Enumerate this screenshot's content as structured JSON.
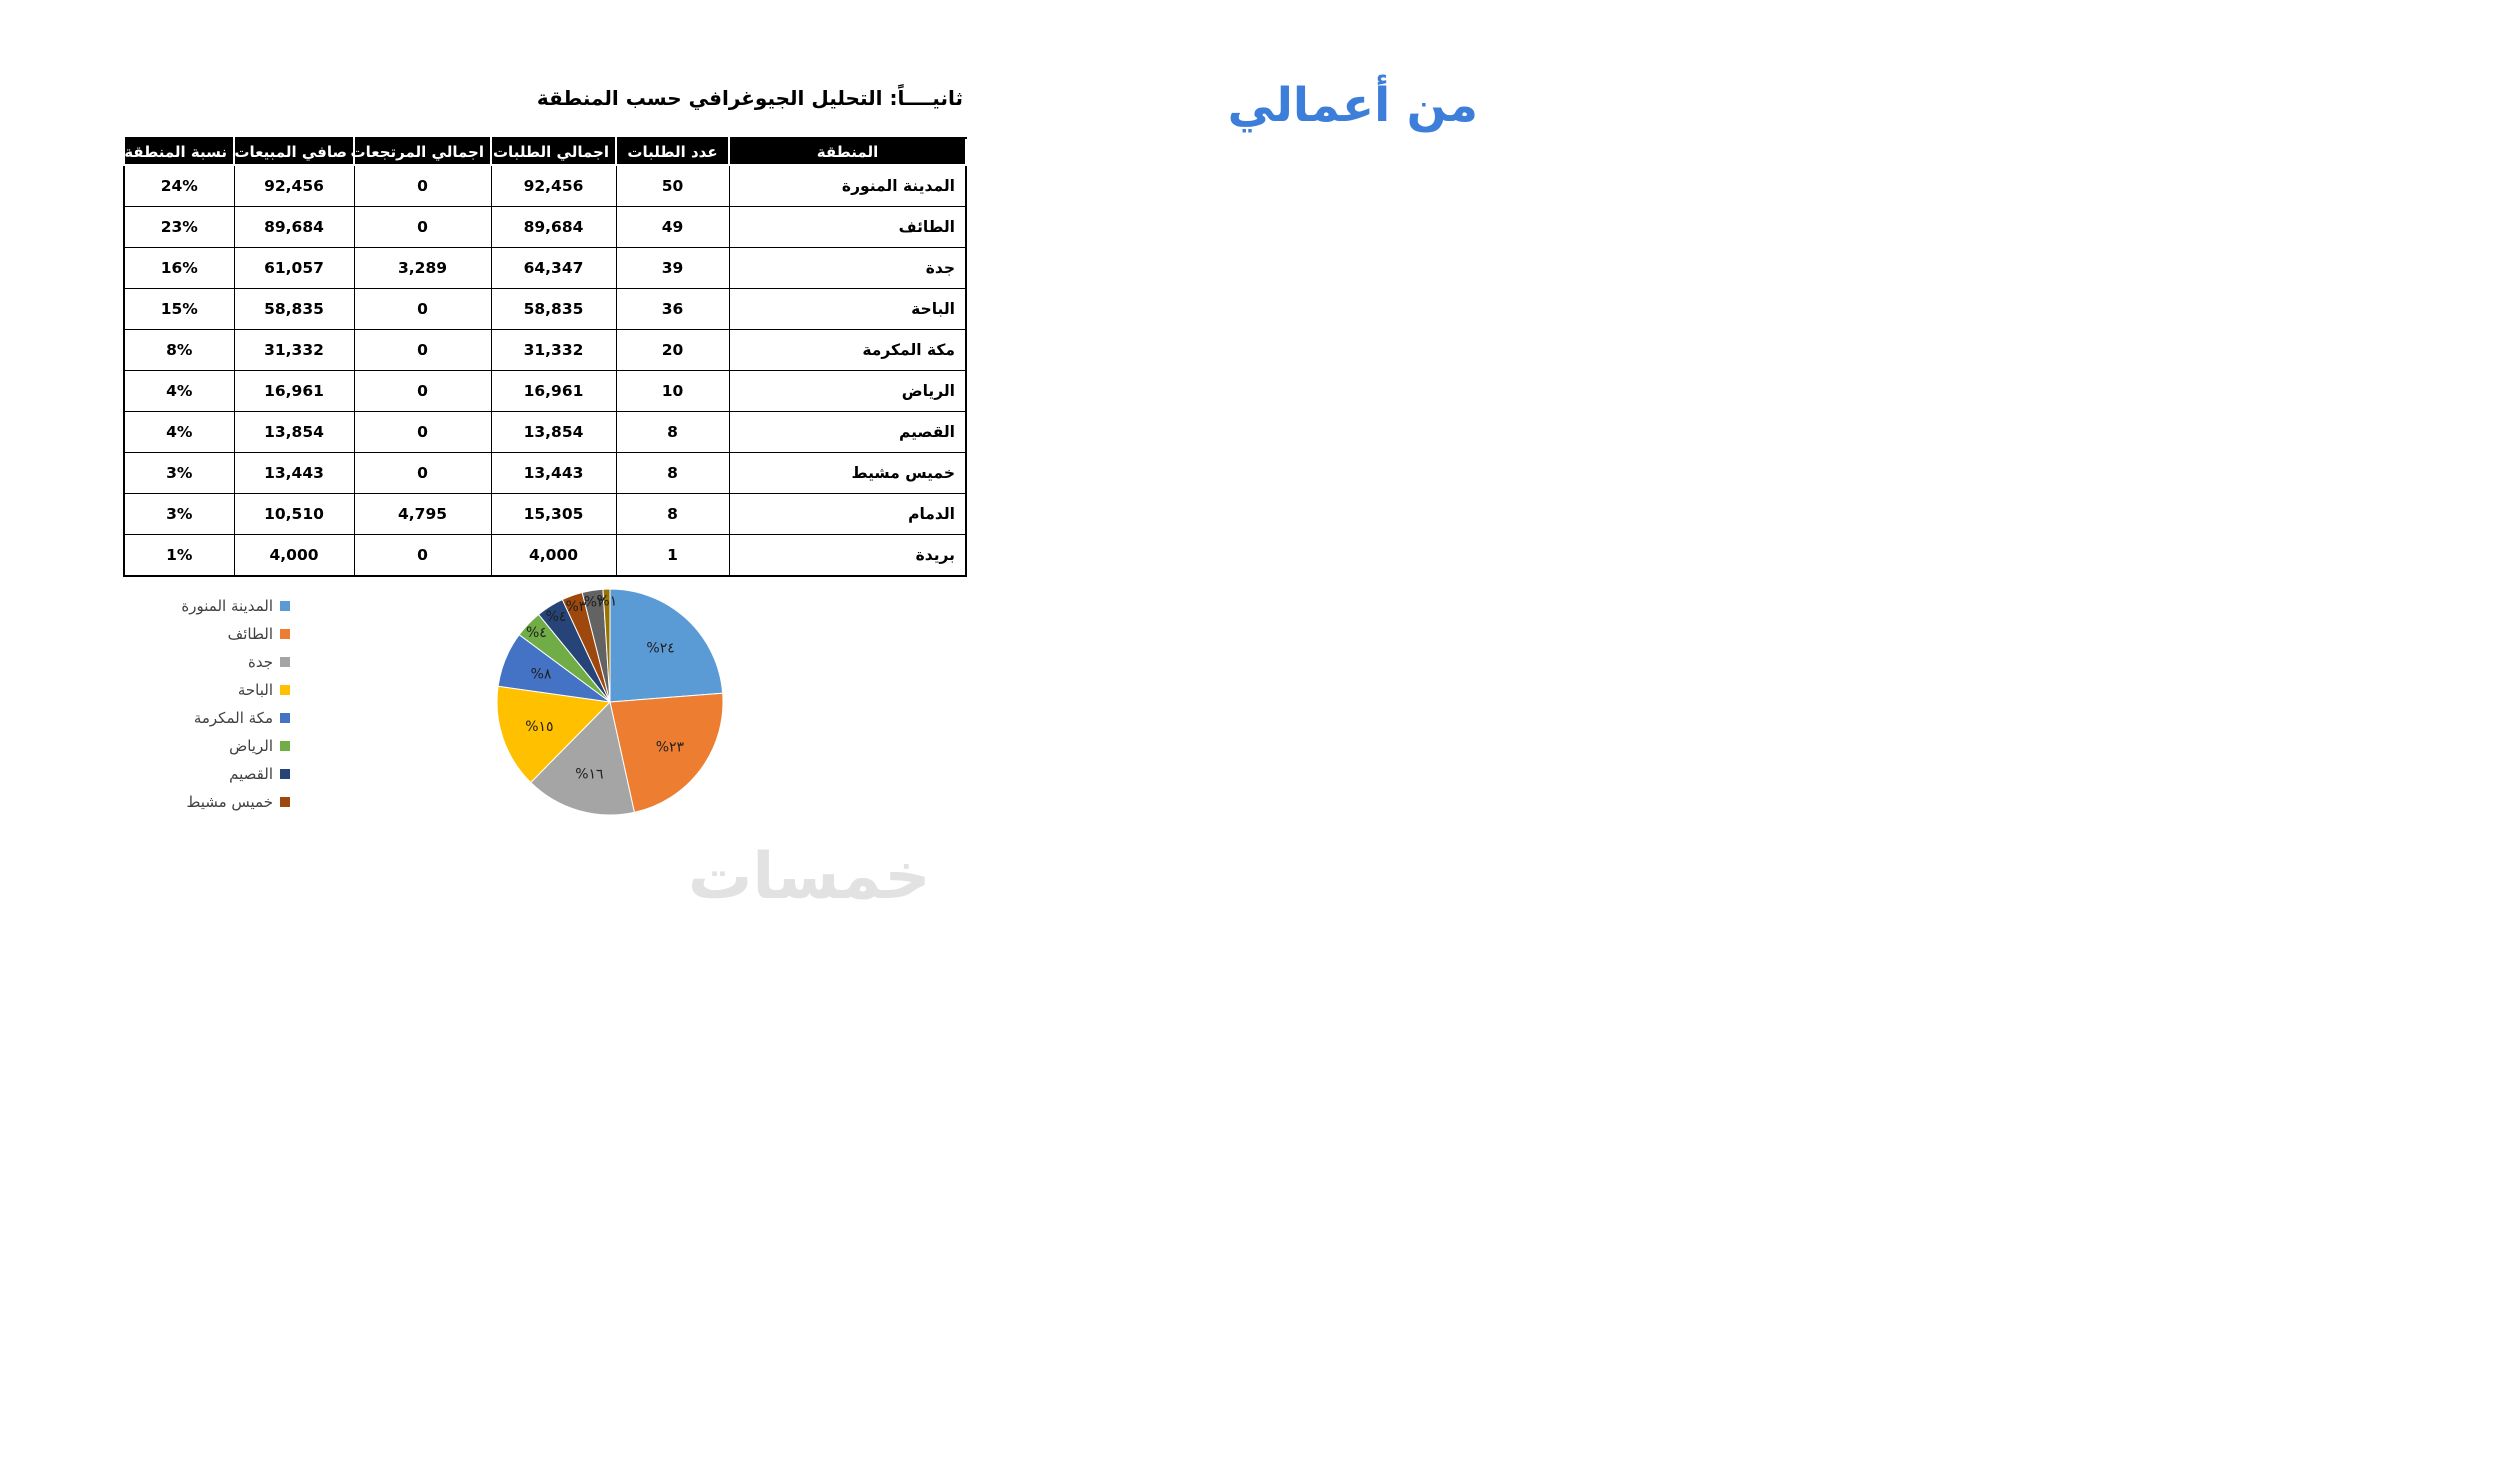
{
  "brand": {
    "label": "من أعمالي",
    "color": "#3d7edb"
  },
  "title": "ثانيــــاً: التحليل الجيوغرافي حسب المنطقة",
  "watermark": "خمسات",
  "table": {
    "headers": [
      "المنطقة",
      "عدد الطلبات",
      "اجمالي الطلبات",
      "اجمالي المرتجعات",
      "صافي المبيعات",
      "نسبة المنطقة"
    ],
    "rows": [
      [
        "المدينة المنورة",
        "50",
        "92,456",
        "0",
        "92,456",
        "24%"
      ],
      [
        "الطائف",
        "49",
        "89,684",
        "0",
        "89,684",
        "23%"
      ],
      [
        "جدة",
        "39",
        "64,347",
        "3,289",
        "61,057",
        "16%"
      ],
      [
        "الباحة",
        "36",
        "58,835",
        "0",
        "58,835",
        "15%"
      ],
      [
        "مكة المكرمة",
        "20",
        "31,332",
        "0",
        "31,332",
        "8%"
      ],
      [
        "الرياض",
        "10",
        "16,961",
        "0",
        "16,961",
        "4%"
      ],
      [
        "القصيم",
        "8",
        "13,854",
        "0",
        "13,854",
        "4%"
      ],
      [
        "خميس مشيط",
        "8",
        "13,443",
        "0",
        "13,443",
        "3%"
      ],
      [
        "الدمام",
        "8",
        "15,305",
        "4,795",
        "10,510",
        "3%"
      ],
      [
        "بريدة",
        "1",
        "4,000",
        "0",
        "4,000",
        "1%"
      ]
    ]
  },
  "chart_data": {
    "type": "pie",
    "title": "",
    "categories": [
      "المدينة المنورة",
      "الطائف",
      "جدة",
      "الباحة",
      "مكة المكرمة",
      "الرياض",
      "القصيم",
      "خميس مشيط",
      "الدمام",
      "بريدة"
    ],
    "values": [
      24,
      23,
      16,
      15,
      8,
      4,
      4,
      3,
      3,
      1
    ],
    "slice_labels": [
      "%٢٤",
      "%٢٣",
      "%١٦",
      "%١٥",
      "%٨",
      "%٤",
      "%٤",
      "%٣",
      "%٣",
      "%١"
    ],
    "colors": [
      "#5B9BD5",
      "#ED7D31",
      "#A5A5A5",
      "#FFC000",
      "#4472C4",
      "#70AD47",
      "#264478",
      "#9E480E",
      "#636363",
      "#997300"
    ],
    "legend_position": "left",
    "legend": [
      {
        "label": "المدينة المنورة",
        "color": "#5B9BD5"
      },
      {
        "label": "الطائف",
        "color": "#ED7D31"
      },
      {
        "label": "جدة",
        "color": "#A5A5A5"
      },
      {
        "label": "الباحة",
        "color": "#FFC000"
      },
      {
        "label": "مكة المكرمة",
        "color": "#4472C4"
      },
      {
        "label": "الرياض",
        "color": "#70AD47"
      },
      {
        "label": "القصيم",
        "color": "#264478"
      },
      {
        "label": "خميس مشيط",
        "color": "#9E480E"
      }
    ]
  }
}
